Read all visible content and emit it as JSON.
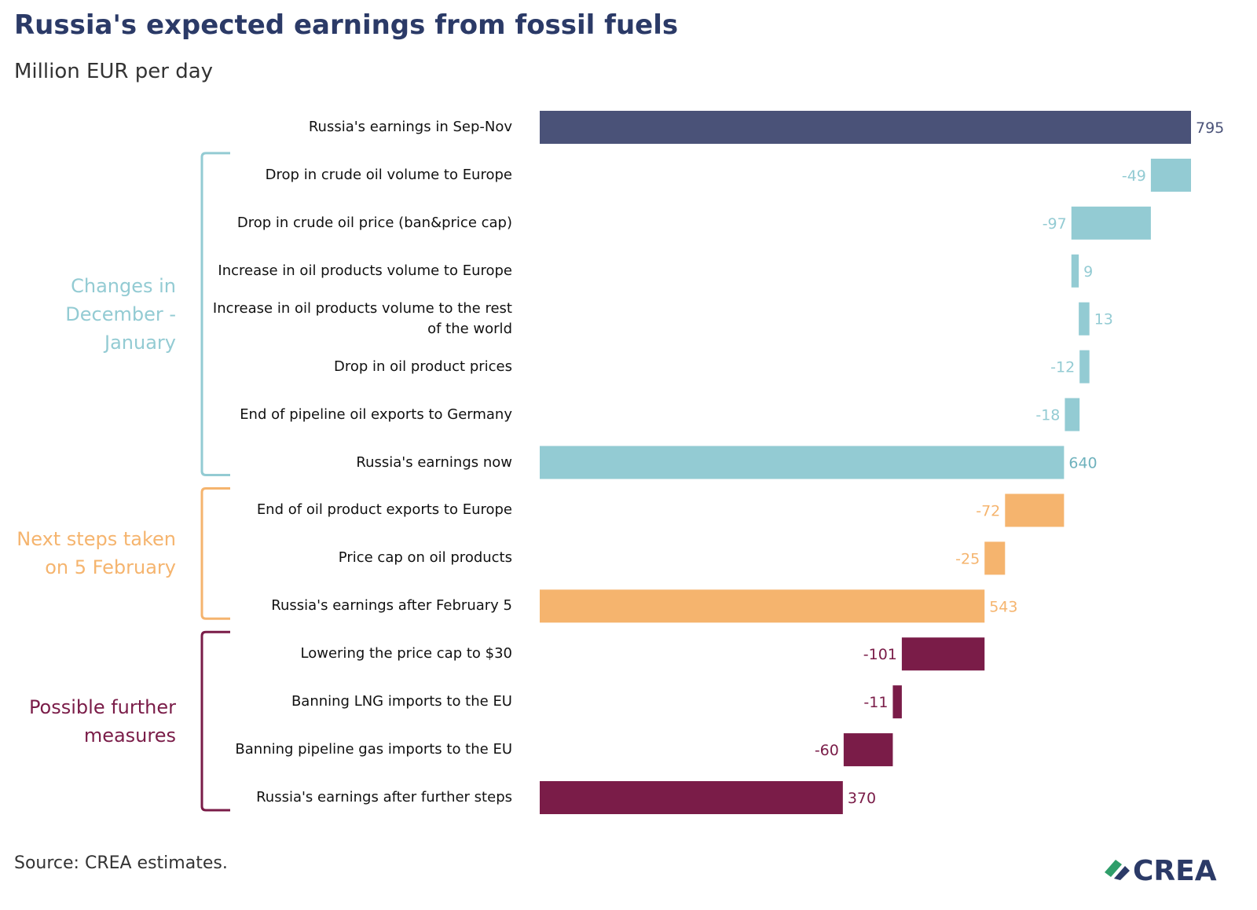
{
  "chart_data": {
    "type": "waterfall",
    "title": "Russia's expected earnings from fossil fuels",
    "subtitle": "Million EUR per day",
    "source": "Source: CREA estimates.",
    "logo": "CREA",
    "categories": [
      "Russia's earnings in Sep-Nov",
      "Drop in crude oil volume to Europe",
      "Drop in crude oil price (ban&price cap)",
      "Increase in oil products volume to Europe",
      "Increase in oil products volume to the rest of the world",
      "Drop in oil product prices",
      "End of pipeline oil exports to Germany",
      "Russia's earnings now",
      "End of oil product exports to Europe",
      "Price cap on oil products",
      "Russia's earnings after February 5",
      "Lowering the price cap to $30",
      "Banning LNG imports to the EU",
      "Banning pipeline gas imports to the EU",
      "Russia's earnings after further steps"
    ],
    "values": [
      795,
      -49,
      -97,
      9,
      13,
      -12,
      -18,
      640,
      -72,
      -25,
      543,
      -101,
      -11,
      -60,
      370
    ],
    "measure": [
      "absolute",
      "relative",
      "relative",
      "relative",
      "relative",
      "relative",
      "relative",
      "absolute",
      "relative",
      "relative",
      "absolute",
      "relative",
      "relative",
      "relative",
      "absolute"
    ],
    "colors": [
      "#4a5278",
      "#93cbd3",
      "#93cbd3",
      "#93cbd3",
      "#93cbd3",
      "#93cbd3",
      "#93cbd3",
      "#93cbd3",
      "#f5b46e",
      "#f5b46e",
      "#f5b46e",
      "#7a1c48",
      "#7a1c48",
      "#7a1c48",
      "#7a1c48"
    ],
    "groups": [
      {
        "label": "Changes in December - January",
        "color": "#93cbd3",
        "start": 1,
        "end": 7
      },
      {
        "label": "Next steps taken on 5 February",
        "color": "#f5b46e",
        "start": 8,
        "end": 10
      },
      {
        "label": "Possible further measures",
        "color": "#7a1c48",
        "start": 11,
        "end": 14
      }
    ]
  }
}
